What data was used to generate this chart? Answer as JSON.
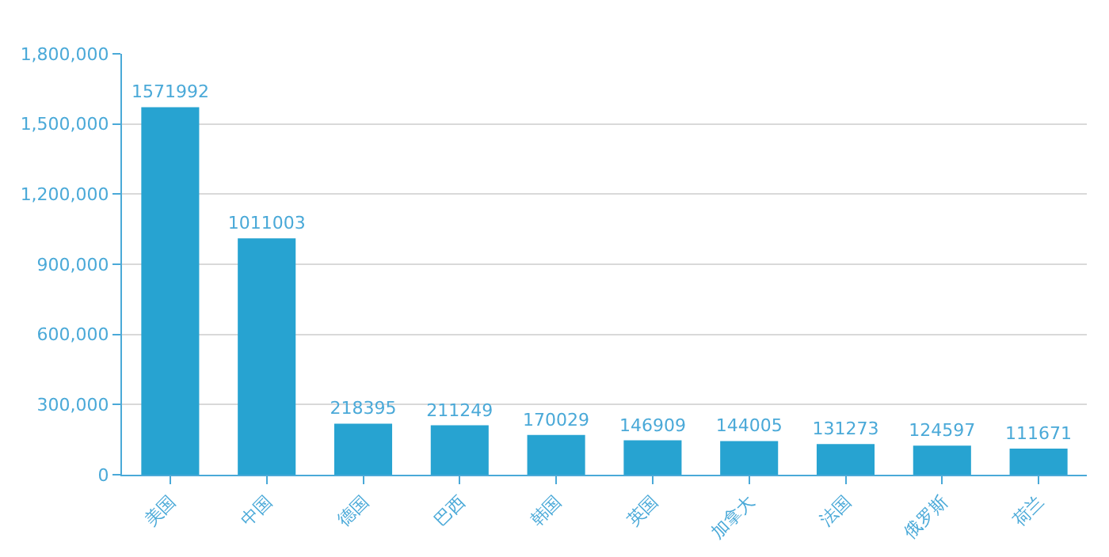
{
  "chart_data": {
    "type": "bar",
    "categories": [
      "美国",
      "中国",
      "德国",
      "巴西",
      "韩国",
      "英国",
      "加拿大",
      "法国",
      "俄罗斯",
      "荷兰"
    ],
    "values": [
      1571992,
      1011003,
      218395,
      211249,
      170029,
      146909,
      144005,
      131273,
      124597,
      111671
    ],
    "color": "#27a3d1",
    "data_labels": true,
    "grid": "y",
    "ylim": [
      0,
      1800000
    ],
    "yticks": [
      {
        "value": 0,
        "label": "0"
      },
      {
        "value": 300000,
        "label": "300,000"
      },
      {
        "value": 600000,
        "label": "600,000"
      },
      {
        "value": 900000,
        "label": "900,000"
      },
      {
        "value": 1200000,
        "label": "1,200,000"
      },
      {
        "value": 1500000,
        "label": "1,500,000"
      },
      {
        "value": 1800000,
        "label": "1,800,000"
      }
    ]
  }
}
